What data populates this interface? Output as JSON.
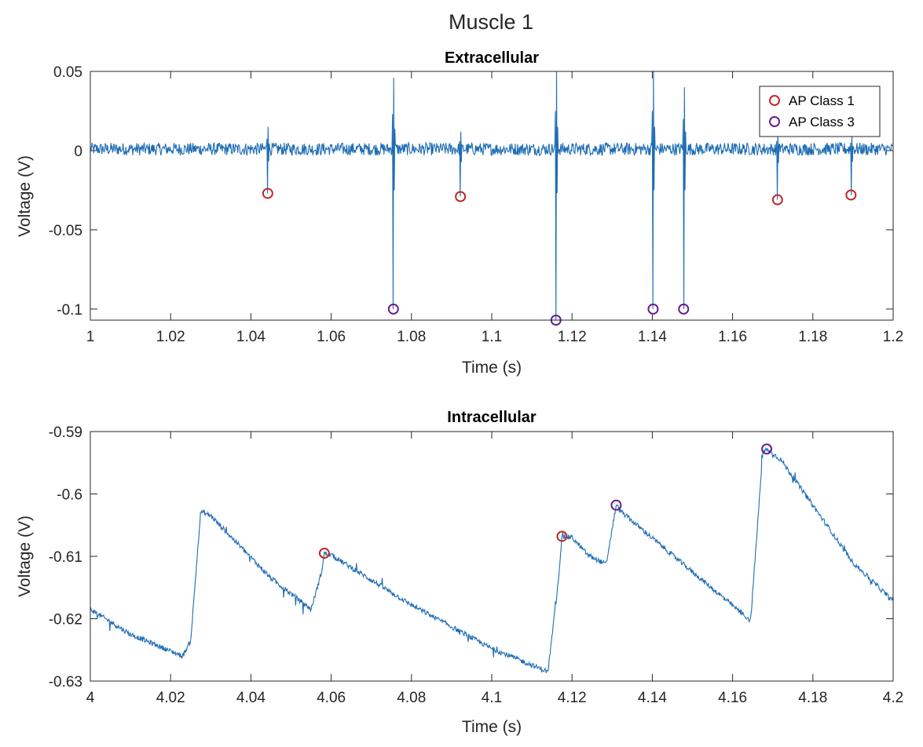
{
  "figure": {
    "title": "Muscle 1"
  },
  "chart_data": [
    {
      "type": "line",
      "title": "Extracellular",
      "xlabel": "Time (s)",
      "ylabel": "Voltage (V)",
      "xlim": [
        1,
        1.2
      ],
      "ylim": [
        -0.107,
        0.05
      ],
      "xticks": [
        1,
        1.02,
        1.04,
        1.06,
        1.08,
        1.1,
        1.12,
        1.14,
        1.16,
        1.18,
        1.2
      ],
      "xtick_labels": [
        "1",
        "1.02",
        "1.04",
        "1.06",
        "1.08",
        "1.1",
        "1.12",
        "1.14",
        "1.16",
        "1.18",
        "1.2"
      ],
      "yticks": [
        0.05,
        0,
        -0.05,
        -0.1
      ],
      "ytick_labels": [
        "0.05",
        "0",
        "-0.05",
        "-0.1"
      ],
      "legend": {
        "placement": "top-right",
        "entries": [
          {
            "label": "AP Class 1",
            "color": "#c0282a"
          },
          {
            "label": "AP Class 3",
            "color": "#6a1f8c"
          }
        ]
      },
      "trace": {
        "color": "#1f6db3",
        "baseline": 0.001,
        "noise_amplitude": 0.004,
        "spikes": [
          {
            "t": 1.0442,
            "min": -0.027,
            "max": 0.015,
            "class": 1
          },
          {
            "t": 1.0755,
            "min": -0.1,
            "max": 0.046,
            "class": 3
          },
          {
            "t": 1.0922,
            "min": -0.029,
            "max": 0.012,
            "class": 1
          },
          {
            "t": 1.116,
            "min": -0.107,
            "max": 0.05,
            "class": 3
          },
          {
            "t": 1.1402,
            "min": -0.1,
            "max": 0.05,
            "class": 3
          },
          {
            "t": 1.1478,
            "min": -0.1,
            "max": 0.04,
            "class": 3
          },
          {
            "t": 1.1712,
            "min": -0.031,
            "max": 0.012,
            "class": 1
          },
          {
            "t": 1.1895,
            "min": -0.028,
            "max": 0.01,
            "class": 1
          }
        ]
      },
      "series": [
        {
          "name": "AP Class 1",
          "color": "#c0282a",
          "x": [
            1.0442,
            1.0922,
            1.1712,
            1.1895
          ],
          "y": [
            -0.027,
            -0.029,
            -0.031,
            -0.028
          ]
        },
        {
          "name": "AP Class 3",
          "color": "#6a1f8c",
          "x": [
            1.0755,
            1.116,
            1.1402,
            1.1478
          ],
          "y": [
            -0.1,
            -0.107,
            -0.1,
            -0.1
          ]
        }
      ]
    },
    {
      "type": "line",
      "title": "Intracellular",
      "xlabel": "Time (s)",
      "ylabel": "Voltage (V)",
      "xlim": [
        4,
        4.2
      ],
      "ylim": [
        -0.63,
        -0.59
      ],
      "xticks": [
        4,
        4.02,
        4.04,
        4.06,
        4.08,
        4.1,
        4.12,
        4.14,
        4.16,
        4.18,
        4.2
      ],
      "xtick_labels": [
        "4",
        "4.02",
        "4.04",
        "4.06",
        "4.08",
        "4.1",
        "4.12",
        "4.14",
        "4.16",
        "4.18",
        "4.2"
      ],
      "yticks": [
        -0.59,
        -0.6,
        -0.61,
        -0.62,
        -0.63
      ],
      "ytick_labels": [
        "-0.59",
        "-0.6",
        "-0.61",
        "-0.62",
        "-0.63"
      ],
      "trace": {
        "color": "#1f6db3",
        "keypoints": [
          [
            4.0,
            -0.6185
          ],
          [
            4.01,
            -0.6225
          ],
          [
            4.023,
            -0.626
          ],
          [
            4.025,
            -0.6235
          ],
          [
            4.0275,
            -0.6028
          ],
          [
            4.03,
            -0.6035
          ],
          [
            4.045,
            -0.6135
          ],
          [
            4.055,
            -0.6185
          ],
          [
            4.0575,
            -0.6128
          ],
          [
            4.0583,
            -0.6095
          ],
          [
            4.06,
            -0.6098
          ],
          [
            4.08,
            -0.6178
          ],
          [
            4.1,
            -0.6248
          ],
          [
            4.114,
            -0.6285
          ],
          [
            4.1165,
            -0.6145
          ],
          [
            4.1175,
            -0.6068
          ],
          [
            4.12,
            -0.607
          ],
          [
            4.124,
            -0.6098
          ],
          [
            4.1285,
            -0.6113
          ],
          [
            4.131,
            -0.6018
          ],
          [
            4.1325,
            -0.603
          ],
          [
            4.15,
            -0.6125
          ],
          [
            4.1645,
            -0.6203
          ],
          [
            4.1675,
            -0.5935
          ],
          [
            4.1685,
            -0.5928
          ],
          [
            4.172,
            -0.5945
          ],
          [
            4.19,
            -0.611
          ],
          [
            4.2,
            -0.6172
          ]
        ],
        "noise_amplitude": 0.0004
      },
      "series": [
        {
          "name": "AP Class 1",
          "color": "#c0282a",
          "x": [
            4.0583,
            4.1175
          ],
          "y": [
            -0.6095,
            -0.6068
          ]
        },
        {
          "name": "AP Class 3",
          "color": "#6a1f8c",
          "x": [
            4.131,
            4.1685
          ],
          "y": [
            -0.6018,
            -0.5928
          ]
        }
      ]
    }
  ]
}
